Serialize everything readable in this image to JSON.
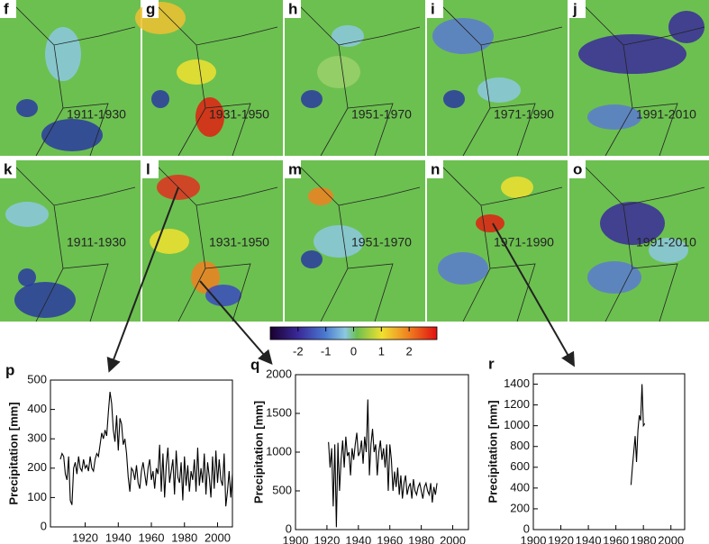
{
  "maps": {
    "panels": [
      {
        "label": "f",
        "period": "1911-1930"
      },
      {
        "label": "g",
        "period": "1931-1950"
      },
      {
        "label": "h",
        "period": "1951-1970"
      },
      {
        "label": "i",
        "period": "1971-1990"
      },
      {
        "label": "j",
        "period": "1991-2010"
      },
      {
        "label": "k",
        "period": "1911-1930"
      },
      {
        "label": "l",
        "period": "1931-1950"
      },
      {
        "label": "m",
        "period": "1951-1970"
      },
      {
        "label": "n",
        "period": "1971-1990"
      },
      {
        "label": "o",
        "period": "1991-2010"
      }
    ]
  },
  "colorbar": {
    "lim": [
      -3,
      3
    ],
    "ticks": [
      -2,
      -1,
      0,
      1,
      2
    ]
  },
  "chart_data": [
    {
      "type": "line",
      "panel": "p",
      "y_label": "Precipitation [mm]",
      "color": "#000000",
      "x": [
        1905,
        1906,
        1907,
        1908,
        1909,
        1910,
        1911,
        1912,
        1913,
        1914,
        1915,
        1916,
        1917,
        1918,
        1919,
        1920,
        1921,
        1922,
        1923,
        1924,
        1925,
        1926,
        1927,
        1928,
        1929,
        1930,
        1931,
        1932,
        1933,
        1934,
        1935,
        1936,
        1937,
        1938,
        1939,
        1940,
        1941,
        1942,
        1943,
        1944,
        1945,
        1946,
        1947,
        1948,
        1949,
        1950,
        1951,
        1952,
        1953,
        1954,
        1955,
        1956,
        1957,
        1958,
        1959,
        1960,
        1961,
        1962,
        1963,
        1964,
        1965,
        1966,
        1967,
        1968,
        1969,
        1970,
        1971,
        1972,
        1973,
        1974,
        1975,
        1976,
        1977,
        1978,
        1979,
        1980,
        1981,
        1982,
        1983,
        1984,
        1985,
        1986,
        1987,
        1988,
        1989,
        1990,
        1991,
        1992,
        1993,
        1994,
        1995,
        1996,
        1997,
        1998,
        1999,
        2000,
        2001,
        2002,
        2003,
        2004,
        2005,
        2006,
        2007,
        2008,
        2009
      ],
      "values": [
        230,
        250,
        240,
        180,
        160,
        240,
        90,
        75,
        200,
        220,
        180,
        240,
        200,
        190,
        230,
        200,
        210,
        190,
        240,
        200,
        190,
        230,
        250,
        240,
        280,
        320,
        300,
        330,
        310,
        390,
        460,
        420,
        330,
        290,
        380,
        260,
        370,
        350,
        280,
        300,
        250,
        170,
        120,
        200,
        190,
        160,
        210,
        150,
        130,
        190,
        220,
        180,
        140,
        200,
        230,
        160,
        190,
        130,
        200,
        180,
        280,
        120,
        250,
        100,
        210,
        270,
        150,
        190,
        230,
        110,
        260,
        170,
        150,
        220,
        90,
        240,
        140,
        210,
        120,
        190,
        160,
        230,
        120,
        270,
        140,
        200,
        150,
        250,
        110,
        220,
        170,
        100,
        240,
        130,
        260,
        150,
        230,
        160,
        140,
        250,
        70,
        120,
        190,
        100,
        180
      ],
      "xlim": [
        1899,
        2009
      ],
      "ylim": [
        0,
        500
      ],
      "xticks": [
        1920,
        1940,
        1960,
        1980,
        2000
      ],
      "yticks": [
        0,
        100,
        200,
        300,
        400,
        500
      ]
    },
    {
      "type": "line",
      "panel": "q",
      "y_label": "Precipitation [mm]",
      "color": "#000000",
      "x": [
        1921,
        1922,
        1923,
        1924,
        1925,
        1926,
        1927,
        1928,
        1929,
        1930,
        1931,
        1932,
        1933,
        1934,
        1935,
        1936,
        1937,
        1938,
        1939,
        1940,
        1941,
        1942,
        1943,
        1944,
        1945,
        1946,
        1947,
        1948,
        1949,
        1950,
        1951,
        1952,
        1953,
        1954,
        1955,
        1956,
        1957,
        1958,
        1959,
        1960,
        1961,
        1962,
        1963,
        1964,
        1965,
        1966,
        1967,
        1968,
        1969,
        1970,
        1971,
        1972,
        1973,
        1974,
        1975,
        1976,
        1977,
        1978,
        1979,
        1980,
        1981,
        1982,
        1983,
        1984,
        1985,
        1986,
        1987,
        1988,
        1989,
        1990
      ],
      "values": [
        1130,
        800,
        1050,
        300,
        1100,
        30,
        1120,
        500,
        900,
        1150,
        800,
        1200,
        950,
        1000,
        700,
        1050,
        900,
        1100,
        1250,
        950,
        1000,
        1150,
        850,
        1200,
        1000,
        1680,
        700,
        1100,
        1300,
        1000,
        1100,
        700,
        1000,
        1150,
        900,
        1050,
        800,
        1100,
        500,
        1100,
        900,
        500,
        750,
        550,
        800,
        450,
        700,
        400,
        600,
        700,
        450,
        550,
        600,
        400,
        650,
        500,
        450,
        550,
        600,
        500,
        400,
        550,
        600,
        500,
        450,
        600,
        350,
        550,
        450,
        600
      ],
      "xlim": [
        1900,
        2010
      ],
      "ylim": [
        0,
        2000
      ],
      "xticks": [
        1900,
        1920,
        1940,
        1960,
        1980,
        2000
      ],
      "yticks": [
        0,
        500,
        1000,
        1500,
        2000
      ]
    },
    {
      "type": "line",
      "panel": "r",
      "y_label": "Precipitation [mm]",
      "color": "#000000",
      "x": [
        1971,
        1972,
        1973,
        1974,
        1975,
        1976,
        1977,
        1978,
        1979,
        1980,
        1981
      ],
      "values": [
        430,
        600,
        750,
        900,
        650,
        950,
        1100,
        1050,
        1400,
        1000,
        1020
      ],
      "xlim": [
        1900,
        2010
      ],
      "ylim": [
        0,
        1500
      ],
      "xticks": [
        1900,
        1920,
        1940,
        1960,
        1980,
        2000
      ],
      "yticks": [
        0,
        200,
        400,
        600,
        800,
        1000,
        1200,
        1400
      ]
    }
  ]
}
